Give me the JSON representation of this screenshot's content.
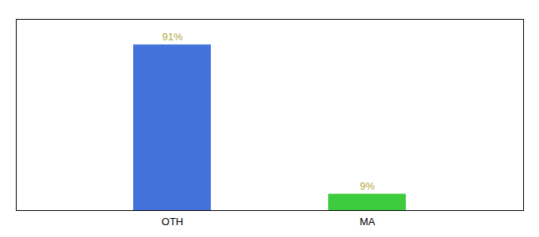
{
  "chart_data": {
    "type": "bar",
    "categories": [
      "OTH",
      "MA"
    ],
    "values": [
      91,
      9
    ],
    "colors": [
      "#4472db",
      "#3dcc3d"
    ],
    "value_labels": [
      "91%",
      "9%"
    ],
    "data_labels": true,
    "ylim": [
      0,
      105
    ],
    "tick_labels": "x"
  }
}
